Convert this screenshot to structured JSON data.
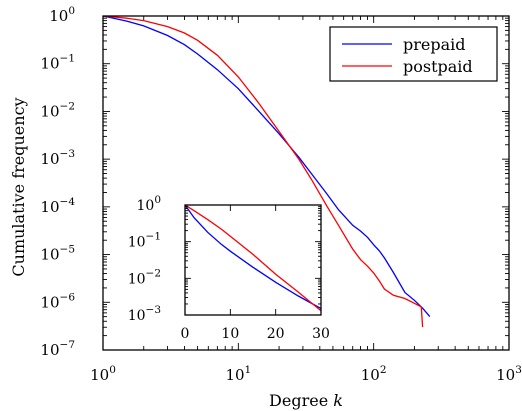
{
  "chart_data": [
    {
      "type": "line",
      "xlabel": "Degree",
      "xlabel_var": "k",
      "ylabel": "Cumulative frequency",
      "xscale": "log",
      "yscale": "log",
      "xlim": [
        1,
        1000
      ],
      "ylim": [
        1e-07,
        1
      ],
      "xticks": [
        {
          "value": 1,
          "base": "10",
          "exp": "0"
        },
        {
          "value": 10,
          "base": "10",
          "exp": "1"
        },
        {
          "value": 100,
          "base": "10",
          "exp": "2"
        },
        {
          "value": 1000,
          "base": "10",
          "exp": "3"
        }
      ],
      "yticks": [
        {
          "value": 1,
          "base": "10",
          "exp": "0"
        },
        {
          "value": 0.1,
          "base": "10",
          "exp": "−1"
        },
        {
          "value": 0.01,
          "base": "10",
          "exp": "−2"
        },
        {
          "value": 0.001,
          "base": "10",
          "exp": "−3"
        },
        {
          "value": 0.0001,
          "base": "10",
          "exp": "−4"
        },
        {
          "value": 1e-05,
          "base": "10",
          "exp": "−5"
        },
        {
          "value": 1e-06,
          "base": "10",
          "exp": "−6"
        },
        {
          "value": 1e-07,
          "base": "10",
          "exp": "−7"
        }
      ],
      "legend_position": "top-right",
      "series": [
        {
          "name": "prepaid",
          "color": "#0000ff",
          "x": [
            1,
            1.5,
            2,
            3,
            4,
            5,
            7,
            10,
            14,
            20,
            28,
            35,
            45,
            55,
            70,
            80,
            90,
            100,
            110,
            120,
            140,
            170,
            200,
            230,
            260
          ],
          "y": [
            1,
            0.78,
            0.62,
            0.39,
            0.25,
            0.16,
            0.075,
            0.03,
            0.0105,
            0.0034,
            0.0011,
            0.00048,
            0.00019,
            8.7e-05,
            4.1e-05,
            3.1e-05,
            2.3e-05,
            1.6e-05,
            1.2e-05,
            8.5e-06,
            4.2e-06,
            1.6e-06,
            1.1e-06,
            7.5e-07,
            5e-07
          ]
        },
        {
          "name": "postpaid",
          "color": "#ff0000",
          "x": [
            1,
            1.5,
            2,
            3,
            4,
            5,
            7,
            10,
            14,
            20,
            28,
            35,
            45,
            55,
            70,
            80,
            90,
            100,
            110,
            120,
            140,
            170,
            200,
            225,
            230
          ],
          "y": [
            1,
            0.9,
            0.8,
            0.6,
            0.44,
            0.31,
            0.15,
            0.053,
            0.0155,
            0.0038,
            0.001,
            0.00036,
            0.000105,
            4.1e-05,
            1.3e-05,
            7.8e-06,
            5.7e-06,
            4.1e-06,
            2.8e-06,
            1.9e-06,
            1.4e-06,
            1.2e-06,
            9.5e-07,
            8e-07,
            3e-07
          ]
        }
      ]
    },
    {
      "type": "line",
      "role": "inset",
      "xscale": "linear",
      "yscale": "log",
      "xlim": [
        0,
        30
      ],
      "ylim": [
        0.001,
        1
      ],
      "xticks": [
        {
          "value": 0,
          "label": "0"
        },
        {
          "value": 10,
          "label": "10"
        },
        {
          "value": 20,
          "label": "20"
        },
        {
          "value": 30,
          "label": "30"
        }
      ],
      "yticks": [
        {
          "value": 1,
          "base": "10",
          "exp": "0"
        },
        {
          "value": 0.1,
          "base": "10",
          "exp": "−1"
        },
        {
          "value": 0.01,
          "base": "10",
          "exp": "−2"
        },
        {
          "value": 0.001,
          "base": "10",
          "exp": "−3"
        }
      ],
      "series": [
        {
          "color": "#0000ff",
          "x": [
            0,
            2,
            5,
            8,
            10,
            15,
            20,
            25,
            30
          ],
          "y": [
            1,
            0.45,
            0.18,
            0.085,
            0.055,
            0.02,
            0.0078,
            0.0033,
            0.0015
          ]
        },
        {
          "color": "#ff0000",
          "x": [
            0,
            2,
            5,
            8,
            10,
            15,
            20,
            25,
            30
          ],
          "y": [
            1,
            0.7,
            0.4,
            0.22,
            0.14,
            0.045,
            0.013,
            0.0042,
            0.0013
          ]
        }
      ]
    }
  ]
}
